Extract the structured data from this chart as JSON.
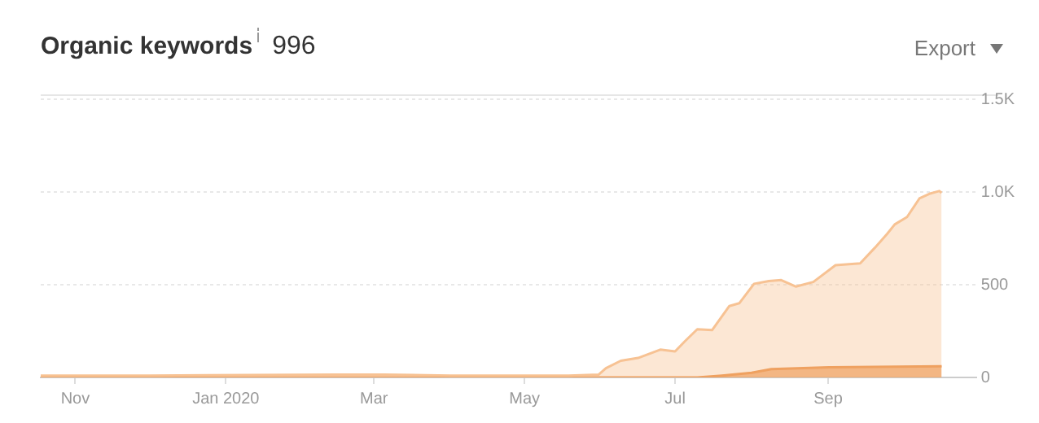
{
  "chart_data": {
    "type": "area",
    "title": "Organic keywords",
    "subtitle": "996",
    "annotations": [
      "Export"
    ],
    "xlim": [
      "2019-10-18",
      "2020-10-31"
    ],
    "xticks": [
      {
        "value": "2019-11-01",
        "label": "Nov"
      },
      {
        "value": "2020-01-01",
        "label": "Jan 2020"
      },
      {
        "value": "2020-03-01",
        "label": "Mar"
      },
      {
        "value": "2020-05-01",
        "label": "May"
      },
      {
        "value": "2020-07-01",
        "label": "Jul"
      },
      {
        "value": "2020-09-01",
        "label": "Sep"
      }
    ],
    "ylim": [
      0,
      1500
    ],
    "yticks": [
      0,
      500,
      {
        "value": 1000,
        "label": "1.0K"
      },
      {
        "value": 1500,
        "label": "1.5K"
      }
    ],
    "grid": "y",
    "legend": false,
    "marker": "none",
    "series": [
      {
        "color": "#f7c293",
        "x": [
          "2019-10-18",
          "2019-12-01",
          "2020-02-15",
          "2020-03-05",
          "2020-04-01",
          "2020-05-19",
          "2020-05-31",
          "2020-06-03",
          "2020-06-09",
          "2020-06-16",
          "2020-06-25",
          "2020-07-01",
          "2020-07-05",
          "2020-07-10",
          "2020-07-16",
          "2020-07-23",
          "2020-07-27",
          "2020-08-02",
          "2020-08-08",
          "2020-08-13",
          "2020-08-19",
          "2020-08-26",
          "2020-09-04",
          "2020-09-14",
          "2020-09-20",
          "2020-09-25",
          "2020-09-28",
          "2020-10-03",
          "2020-10-08",
          "2020-10-12",
          "2020-10-16",
          "2020-10-17"
        ],
        "values": [
          10,
          10,
          15,
          15,
          10,
          10,
          15,
          50,
          90,
          105,
          150,
          140,
          195,
          260,
          255,
          385,
          400,
          505,
          520,
          525,
          490,
          515,
          605,
          615,
          700,
          775,
          825,
          865,
          965,
          990,
          1005,
          996
        ]
      },
      {
        "color": "#e98a3e",
        "x": [
          "2019-10-18",
          "2020-07-10",
          "2020-07-20",
          "2020-08-01",
          "2020-08-09",
          "2020-09-02",
          "2020-10-17"
        ],
        "values": [
          0,
          0,
          10,
          25,
          45,
          55,
          60
        ]
      }
    ]
  }
}
